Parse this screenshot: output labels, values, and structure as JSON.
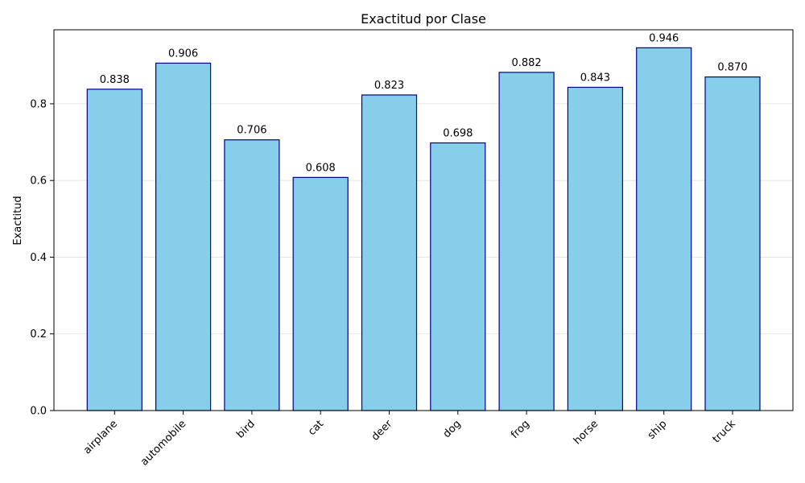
{
  "chart_data": {
    "type": "bar",
    "title": "Exactitud por Clase",
    "xlabel": "",
    "ylabel": "Exactitud",
    "categories": [
      "airplane",
      "automobile",
      "bird",
      "cat",
      "deer",
      "dog",
      "frog",
      "horse",
      "ship",
      "truck"
    ],
    "values": [
      0.838,
      0.906,
      0.706,
      0.608,
      0.823,
      0.698,
      0.882,
      0.843,
      0.946,
      0.87
    ],
    "value_labels": [
      "0.838",
      "0.906",
      "0.706",
      "0.608",
      "0.823",
      "0.698",
      "0.882",
      "0.843",
      "0.946",
      "0.870"
    ],
    "ylim": [
      0,
      0.993
    ],
    "yticks": [
      0.0,
      0.2,
      0.4,
      0.6,
      0.8
    ],
    "ytick_labels": [
      "0.0",
      "0.2",
      "0.4",
      "0.6",
      "0.8"
    ],
    "grid": "y-only",
    "x_tick_rotation_deg": 45,
    "colors": {
      "bar_fill": "#87ceeb",
      "bar_edge": "#00008b",
      "grid": "#e6e6e6",
      "axis": "#000000"
    }
  }
}
